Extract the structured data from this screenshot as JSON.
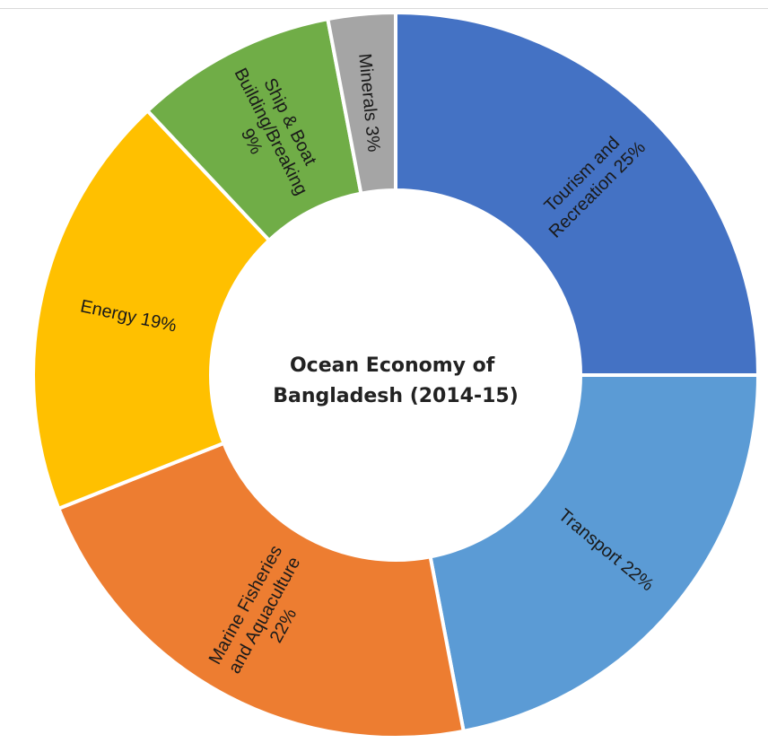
{
  "chart_data": {
    "type": "pie",
    "donut": true,
    "title_lines": [
      "Ocean Economy of",
      "Bangladesh (2014-15)"
    ],
    "slices": [
      {
        "name": "Tourism and Recreation",
        "value": 25,
        "color": "#4472C4",
        "label_lines": [
          "Tourism and",
          "Recreation 25%"
        ]
      },
      {
        "name": "Transport",
        "value": 22,
        "color": "#5B9BD5",
        "label_lines": [
          "Transport 22%"
        ]
      },
      {
        "name": "Marine Fisheries and Aquaculture",
        "value": 22,
        "color": "#ED7D31",
        "label_lines": [
          "Marine Fisheries",
          "and Aquaculture",
          "22%"
        ]
      },
      {
        "name": "Energy",
        "value": 19,
        "color": "#FFC000",
        "label_lines": [
          "Energy 19%"
        ]
      },
      {
        "name": "Ship & Boat Building/Breaking",
        "value": 9,
        "color": "#70AD47",
        "label_lines": [
          "Ship & Boat",
          "Building/Breaking",
          "9%"
        ]
      },
      {
        "name": "Minerals",
        "value": 3,
        "color": "#A5A5A5",
        "label_lines": [
          "Minerals 3%"
        ]
      }
    ]
  }
}
